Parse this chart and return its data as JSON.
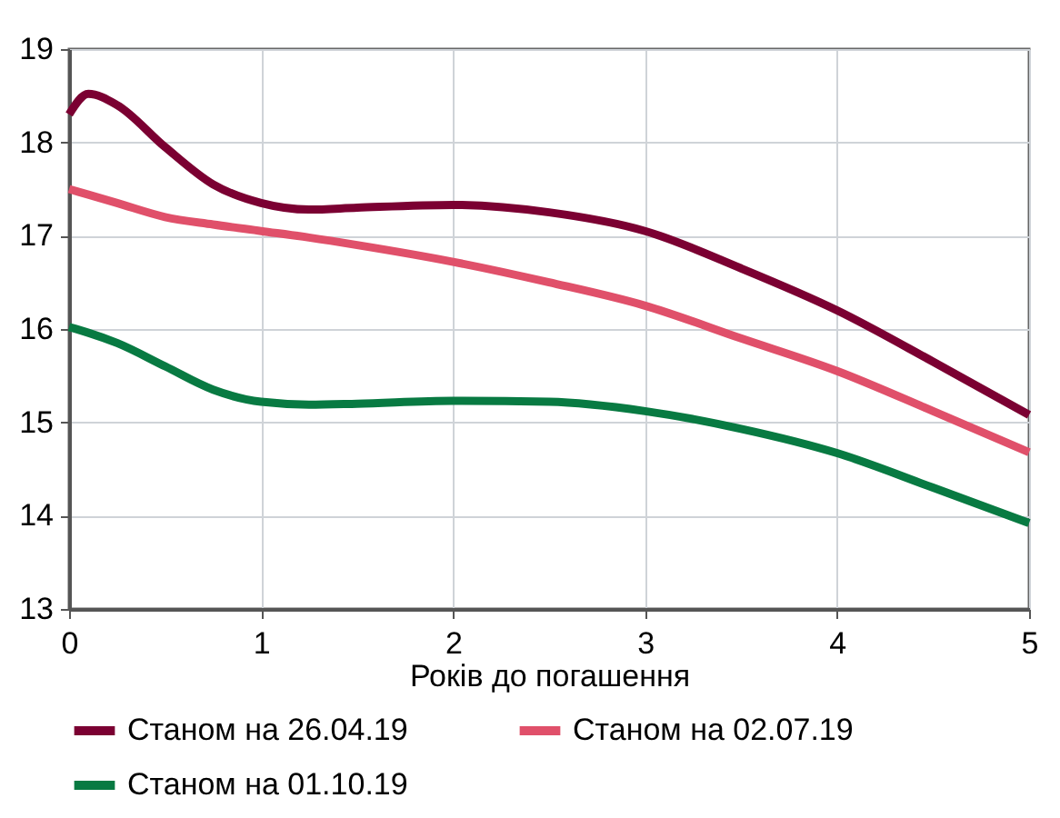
{
  "chart_data": {
    "type": "line",
    "xlabel": "Років до погашення",
    "x": [
      0,
      0.1,
      0.25,
      0.5,
      0.75,
      1,
      1.25,
      1.5,
      2,
      2.5,
      3,
      3.5,
      4,
      4.5,
      5
    ],
    "series": [
      {
        "name": "Станом на 26.04.19",
        "color": "#7b0032",
        "values": [
          18.3,
          18.52,
          18.4,
          17.95,
          17.55,
          17.35,
          17.28,
          17.3,
          17.33,
          17.25,
          17.05,
          16.65,
          16.2,
          15.65,
          15.08
        ]
      },
      {
        "name": "Станом на 02.07.19",
        "color": "#e0506a",
        "values": [
          17.5,
          17.44,
          17.35,
          17.2,
          17.12,
          17.05,
          16.98,
          16.9,
          16.72,
          16.5,
          16.25,
          15.9,
          15.55,
          15.12,
          14.68
        ]
      },
      {
        "name": "Станом на 01.10.19",
        "color": "#087a42",
        "values": [
          16.02,
          15.96,
          15.85,
          15.6,
          15.35,
          15.22,
          15.19,
          15.2,
          15.23,
          15.22,
          15.12,
          14.93,
          14.67,
          14.3,
          13.92
        ]
      }
    ],
    "xlim": [
      0,
      5
    ],
    "xticks": [
      0,
      1,
      2,
      3,
      4,
      5
    ],
    "ylim": [
      13,
      19
    ],
    "yticks": [
      13,
      14,
      15,
      16,
      17,
      18,
      19
    ],
    "grid": true,
    "legend": "bottom",
    "marker": "none",
    "line_style": "solid"
  }
}
